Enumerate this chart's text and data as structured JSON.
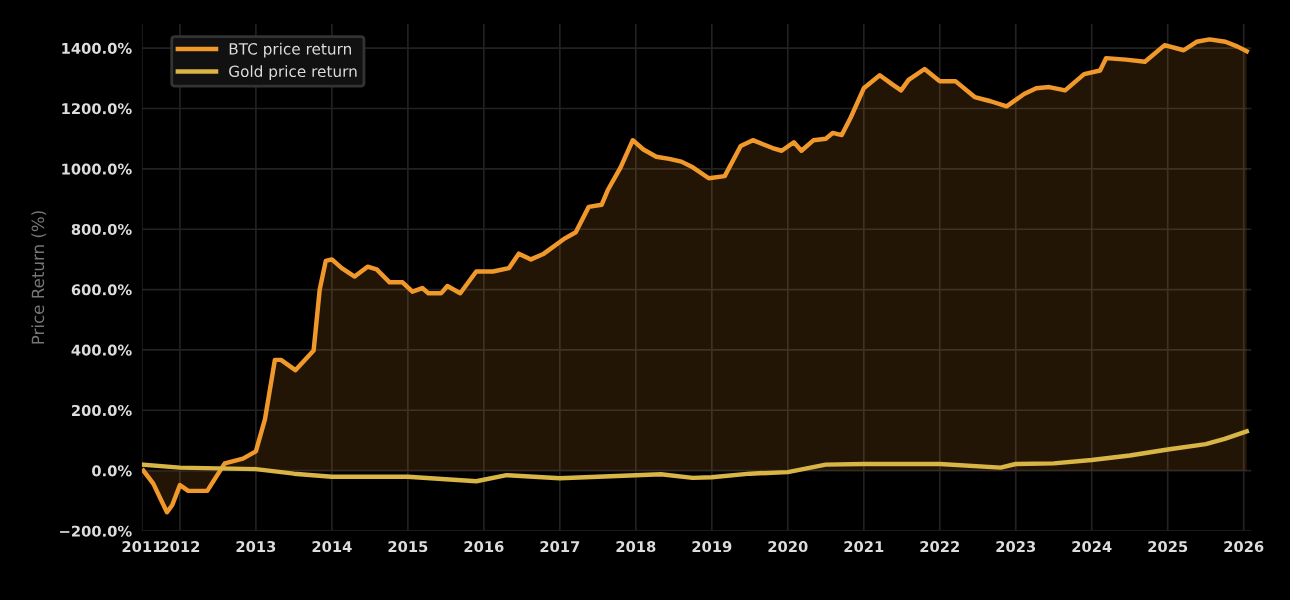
{
  "chart_data": {
    "type": "line",
    "ylabel": "Price Return (%)",
    "series": [
      {
        "name": "BTC price return",
        "type": "area",
        "color": "#f0982a",
        "x": [
          2011.52,
          2011.65,
          2011.83,
          2011.9,
          2012.0,
          2012.11,
          2012.36,
          2012.59,
          2012.83,
          2013.0,
          2013.12,
          2013.25,
          2013.33,
          2013.52,
          2013.76,
          2013.84,
          2013.92,
          2014.0,
          2014.13,
          2014.3,
          2014.47,
          2014.59,
          2014.76,
          2014.93,
          2015.06,
          2015.19,
          2015.27,
          2015.44,
          2015.52,
          2015.69,
          2015.9,
          2016.12,
          2016.33,
          2016.46,
          2016.62,
          2016.79,
          2017.05,
          2017.21,
          2017.38,
          2017.55,
          2017.63,
          2017.8,
          2017.96,
          2018.1,
          2018.27,
          2018.44,
          2018.6,
          2018.75,
          2018.96,
          2019.17,
          2019.38,
          2019.54,
          2019.8,
          2019.92,
          2020.08,
          2020.18,
          2020.34,
          2020.5,
          2020.59,
          2020.71,
          2020.83,
          2021.0,
          2021.21,
          2021.38,
          2021.49,
          2021.59,
          2021.8,
          2022.0,
          2022.21,
          2022.46,
          2022.67,
          2022.88,
          2023.11,
          2023.27,
          2023.44,
          2023.65,
          2023.9,
          2024.11,
          2024.19,
          2024.45,
          2024.7,
          2024.96,
          2025.21,
          2025.38,
          2025.55,
          2025.76,
          2025.92,
          2026.04
        ],
        "values": [
          0,
          -43,
          -138,
          -114,
          -48,
          -67,
          -67,
          24,
          40,
          64,
          171,
          367,
          367,
          333,
          398,
          600,
          695,
          700,
          671,
          643,
          676,
          667,
          624,
          624,
          593,
          605,
          588,
          588,
          612,
          588,
          660,
          660,
          671,
          719,
          700,
          719,
          767,
          790,
          874,
          881,
          929,
          1005,
          1095,
          1064,
          1040,
          1033,
          1024,
          1005,
          969,
          976,
          1076,
          1095,
          1069,
          1060,
          1088,
          1060,
          1095,
          1100,
          1119,
          1112,
          1171,
          1267,
          1310,
          1279,
          1260,
          1295,
          1331,
          1290,
          1290,
          1238,
          1224,
          1207,
          1248,
          1267,
          1271,
          1260,
          1314,
          1326,
          1367,
          1362,
          1355,
          1410,
          1393,
          1421,
          1429,
          1421,
          1405,
          1390
        ]
      },
      {
        "name": "Gold price return",
        "color": "#d8b545",
        "x": [
          2011.52,
          2012.0,
          2013.0,
          2013.5,
          2014.0,
          2015.0,
          2015.9,
          2016.3,
          2017.0,
          2018.0,
          2018.33,
          2018.75,
          2019.0,
          2019.5,
          2020.0,
          2020.5,
          2021.0,
          2022.0,
          2022.8,
          2023.0,
          2023.5,
          2024.0,
          2024.5,
          2025.0,
          2025.5,
          2025.75,
          2026.04
        ],
        "values": [
          20,
          10,
          5,
          -10,
          -20,
          -20,
          -35,
          -15,
          -25,
          -15,
          -12,
          -24,
          -22,
          -10,
          -5,
          20,
          22,
          22,
          10,
          22,
          24,
          35,
          50,
          70,
          88,
          105,
          130
        ]
      }
    ],
    "xlim": [
      2011.5,
      2026.1
    ],
    "xticks": [
      {
        "value": 2011.5,
        "label": "2011"
      },
      2012,
      2013,
      2014,
      2015,
      2016,
      2017,
      2018,
      2019,
      2020,
      2021,
      2022,
      2023,
      2024,
      2025,
      2026
    ],
    "ylim": [
      -200,
      1480
    ],
    "yticks": [
      {
        "value": -200,
        "label": "−200.0%"
      },
      {
        "value": 0,
        "label": "0.0%"
      },
      {
        "value": 200,
        "label": "200.0%"
      },
      {
        "value": 400,
        "label": "400.0%"
      },
      {
        "value": 600,
        "label": "600.0%"
      },
      {
        "value": 800,
        "label": "800.0%"
      },
      {
        "value": 1000,
        "label": "1000.0%"
      },
      {
        "value": 1200,
        "label": "1200.0%"
      },
      {
        "value": 1400,
        "label": "1400.0%"
      }
    ],
    "grid": true,
    "legend": "top left"
  }
}
